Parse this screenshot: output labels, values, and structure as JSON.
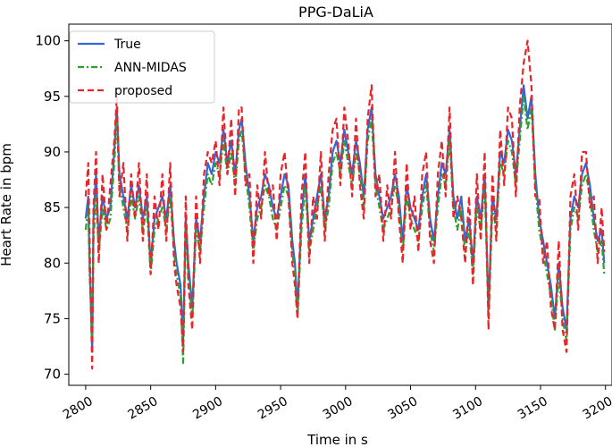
{
  "chart_data": {
    "type": "line",
    "title": "PPG-DaLiA",
    "xlabel": "Time in s",
    "ylabel": "Heart Rate in bpm",
    "xlim": [
      2787,
      3205
    ],
    "ylim": [
      69,
      101.5
    ],
    "xticks": [
      2800,
      2850,
      2900,
      2950,
      3000,
      3050,
      3100,
      3150,
      3200
    ],
    "yticks": [
      70,
      75,
      80,
      85,
      90,
      95,
      100
    ],
    "legend_position": "top-left",
    "series": [
      {
        "name": "True",
        "color": "#3366dd",
        "style": "solid",
        "x": [
          2800,
          2802,
          2803,
          2805,
          2806,
          2808,
          2810,
          2813,
          2816,
          2819,
          2822,
          2824,
          2826,
          2829,
          2832,
          2835,
          2838,
          2841,
          2844,
          2847,
          2850,
          2853,
          2856,
          2859,
          2862,
          2865,
          2868,
          2870,
          2873,
          2875,
          2877,
          2879,
          2882,
          2885,
          2888,
          2891,
          2894,
          2897,
          2900,
          2903,
          2906,
          2909,
          2912,
          2915,
          2918,
          2920,
          2923,
          2926,
          2929,
          2932,
          2935,
          2938,
          2941,
          2944,
          2947,
          2950,
          2953,
          2956,
          2959,
          2961,
          2963,
          2966,
          2969,
          2972,
          2975,
          2978,
          2981,
          2984,
          2987,
          2990,
          2993,
          2996,
          2999,
          3002,
          3005,
          3008,
          3011,
          3014,
          3017,
          3020,
          3023,
          3026,
          3029,
          3032,
          3035,
          3038,
          3041,
          3044,
          3047,
          3050,
          3053,
          3056,
          3059,
          3062,
          3065,
          3068,
          3071,
          3074,
          3077,
          3080,
          3083,
          3086,
          3089,
          3092,
          3095,
          3098,
          3101,
          3104,
          3107,
          3110,
          3113,
          3116,
          3119,
          3122,
          3125,
          3128,
          3131,
          3134,
          3137,
          3140,
          3143,
          3146,
          3149,
          3152,
          3155,
          3158,
          3161,
          3164,
          3167,
          3170,
          3173,
          3176,
          3179,
          3182,
          3185,
          3188,
          3191,
          3194,
          3197,
          3199
        ],
        "y": [
          84,
          86,
          80,
          72,
          84,
          88,
          82,
          86,
          84,
          85,
          90,
          94,
          88,
          86,
          84,
          87,
          85,
          87,
          84,
          86,
          80,
          84,
          85,
          86,
          84,
          87,
          82,
          80,
          78,
          73,
          84,
          80,
          76,
          84,
          82,
          86,
          89,
          88,
          90,
          89,
          92,
          89,
          91,
          88,
          92,
          93,
          89,
          86,
          82,
          85,
          86,
          88,
          87,
          85,
          84,
          86,
          88,
          87,
          82,
          80,
          76,
          84,
          88,
          82,
          84,
          86,
          88,
          84,
          86,
          90,
          91,
          89,
          92,
          90,
          88,
          91,
          89,
          86,
          92,
          94,
          88,
          86,
          84,
          85,
          86,
          88,
          86,
          82,
          87,
          85,
          84,
          83,
          86,
          88,
          84,
          82,
          86,
          89,
          88,
          92,
          86,
          84,
          86,
          82,
          84,
          80,
          86,
          84,
          88,
          76,
          86,
          84,
          90,
          89,
          92,
          91,
          88,
          92,
          96,
          93,
          95,
          88,
          84,
          82,
          80,
          78,
          75,
          80,
          76,
          74,
          84,
          86,
          85,
          88,
          89,
          87,
          84,
          82,
          83,
          80
        ]
      },
      {
        "name": "ANN-MIDAS",
        "color": "#2ca02c",
        "style": "dashdot",
        "x": [
          2800,
          2802,
          2803,
          2805,
          2806,
          2808,
          2810,
          2813,
          2816,
          2819,
          2822,
          2824,
          2826,
          2829,
          2832,
          2835,
          2838,
          2841,
          2844,
          2847,
          2850,
          2853,
          2856,
          2859,
          2862,
          2865,
          2868,
          2870,
          2873,
          2875,
          2877,
          2879,
          2882,
          2885,
          2888,
          2891,
          2894,
          2897,
          2900,
          2903,
          2906,
          2909,
          2912,
          2915,
          2918,
          2920,
          2923,
          2926,
          2929,
          2932,
          2935,
          2938,
          2941,
          2944,
          2947,
          2950,
          2953,
          2956,
          2959,
          2961,
          2963,
          2966,
          2969,
          2972,
          2975,
          2978,
          2981,
          2984,
          2987,
          2990,
          2993,
          2996,
          2999,
          3002,
          3005,
          3008,
          3011,
          3014,
          3017,
          3020,
          3023,
          3026,
          3029,
          3032,
          3035,
          3038,
          3041,
          3044,
          3047,
          3050,
          3053,
          3056,
          3059,
          3062,
          3065,
          3068,
          3071,
          3074,
          3077,
          3080,
          3083,
          3086,
          3089,
          3092,
          3095,
          3098,
          3101,
          3104,
          3107,
          3110,
          3113,
          3116,
          3119,
          3122,
          3125,
          3128,
          3131,
          3134,
          3137,
          3140,
          3143,
          3146,
          3149,
          3152,
          3155,
          3158,
          3161,
          3164,
          3167,
          3170,
          3173,
          3176,
          3179,
          3182,
          3185,
          3188,
          3191,
          3194,
          3197,
          3199
        ],
        "y": [
          83,
          85,
          79,
          73,
          82,
          86,
          81,
          85,
          83,
          84,
          89,
          93,
          87,
          85,
          83,
          86,
          84,
          86,
          83,
          85,
          79,
          83,
          84,
          85,
          83,
          86,
          81,
          79,
          77,
          71,
          83,
          79,
          75,
          83,
          81,
          85,
          88,
          87,
          89,
          88,
          91,
          88,
          90,
          87,
          91,
          92,
          88,
          85,
          81,
          84,
          85,
          87,
          86,
          84,
          83,
          85,
          87,
          86,
          81,
          79,
          75,
          83,
          87,
          81,
          83,
          85,
          87,
          83,
          85,
          89,
          90,
          88,
          91,
          89,
          87,
          90,
          88,
          85,
          91,
          93,
          87,
          85,
          83,
          84,
          85,
          87,
          85,
          81,
          86,
          84,
          83,
          82,
          85,
          87,
          83,
          81,
          85,
          88,
          87,
          91,
          85,
          83,
          85,
          81,
          83,
          79,
          85,
          83,
          87,
          75,
          85,
          83,
          89,
          88,
          91,
          90,
          87,
          91,
          95,
          92,
          94,
          87,
          83,
          81,
          79,
          77,
          74,
          79,
          75,
          73,
          83,
          85,
          84,
          87,
          88,
          86,
          83,
          81,
          82,
          79
        ]
      },
      {
        "name": "proposed",
        "color": "#e8262a",
        "style": "dashed",
        "x": [
          2800,
          2802,
          2803,
          2805,
          2806,
          2808,
          2810,
          2813,
          2816,
          2819,
          2822,
          2824,
          2826,
          2829,
          2832,
          2835,
          2838,
          2841,
          2844,
          2847,
          2850,
          2853,
          2856,
          2859,
          2862,
          2865,
          2868,
          2870,
          2873,
          2875,
          2877,
          2879,
          2882,
          2885,
          2888,
          2891,
          2894,
          2897,
          2900,
          2903,
          2906,
          2909,
          2912,
          2915,
          2918,
          2920,
          2923,
          2926,
          2929,
          2932,
          2935,
          2938,
          2941,
          2944,
          2947,
          2950,
          2953,
          2956,
          2959,
          2961,
          2963,
          2966,
          2969,
          2972,
          2975,
          2978,
          2981,
          2984,
          2987,
          2990,
          2993,
          2996,
          2999,
          3002,
          3005,
          3008,
          3011,
          3014,
          3017,
          3020,
          3023,
          3026,
          3029,
          3032,
          3035,
          3038,
          3041,
          3044,
          3047,
          3050,
          3053,
          3056,
          3059,
          3062,
          3065,
          3068,
          3071,
          3074,
          3077,
          3080,
          3083,
          3086,
          3089,
          3092,
          3095,
          3098,
          3101,
          3104,
          3107,
          3110,
          3113,
          3116,
          3119,
          3122,
          3125,
          3128,
          3131,
          3134,
          3137,
          3140,
          3143,
          3146,
          3149,
          3152,
          3155,
          3158,
          3161,
          3164,
          3167,
          3170,
          3173,
          3176,
          3179,
          3182,
          3185,
          3188,
          3191,
          3194,
          3197,
          3199
        ],
        "y": [
          86,
          89,
          82,
          70.5,
          85,
          90,
          80,
          88,
          83,
          87,
          91,
          95,
          86,
          89,
          82,
          88,
          84,
          89,
          82,
          88,
          79,
          86,
          83,
          88,
          82,
          89,
          80,
          78,
          76,
          72,
          86,
          78,
          74,
          86,
          80,
          88,
          90,
          89,
          91,
          87,
          94,
          88,
          93,
          86,
          94,
          94,
          87,
          88,
          80,
          87,
          84,
          90,
          86,
          87,
          82,
          88,
          90,
          86,
          80,
          78,
          75,
          86,
          90,
          80,
          86,
          84,
          90,
          82,
          88,
          92,
          93,
          87,
          94,
          91,
          86,
          93,
          87,
          84,
          93,
          96,
          86,
          88,
          82,
          87,
          84,
          90,
          84,
          80,
          89,
          83,
          86,
          81,
          88,
          90,
          82,
          80,
          88,
          91,
          86,
          94,
          84,
          86,
          84,
          80,
          86,
          78,
          88,
          82,
          90,
          74,
          88,
          82,
          92,
          87,
          94,
          93,
          86,
          94,
          98,
          100,
          96,
          86,
          86,
          80,
          82,
          76,
          74,
          82,
          74,
          72,
          86,
          88,
          83,
          90,
          90,
          85,
          86,
          80,
          85,
          81
        ]
      }
    ]
  }
}
